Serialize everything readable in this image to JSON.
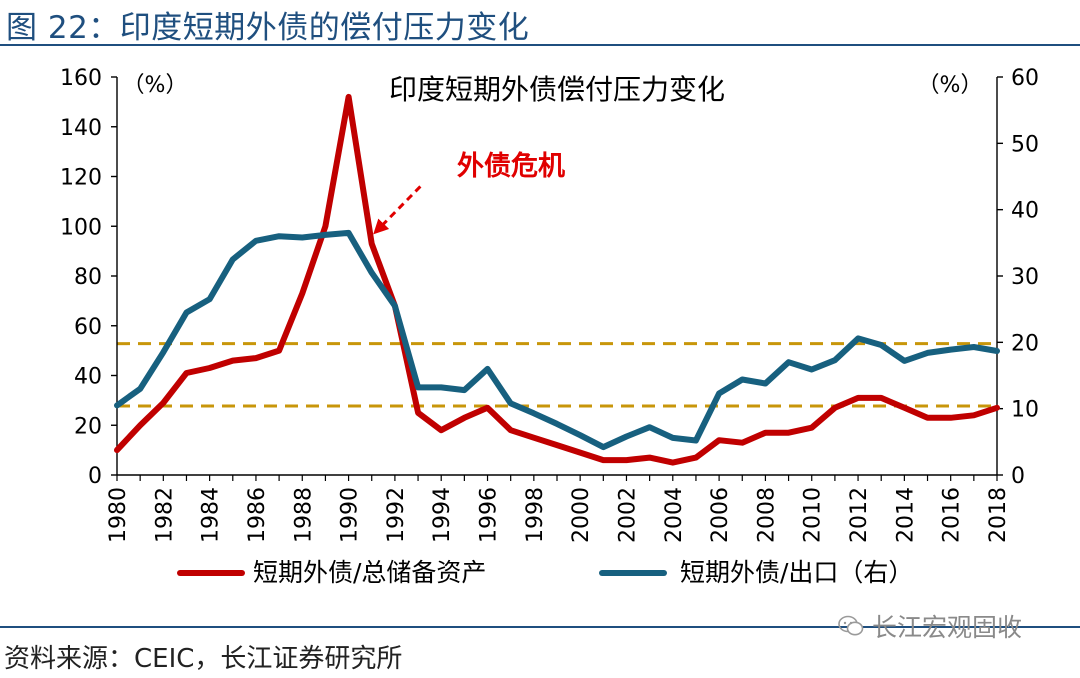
{
  "figure": {
    "title": "图 22：印度短期外债的偿付压力变化",
    "source": "资料来源：CEIC，长江证券研究所",
    "watermark": "长江宏观固收"
  },
  "chart_data": {
    "type": "line",
    "title": "印度短期外债偿付压力变化",
    "x": [
      1980,
      1981,
      1982,
      1983,
      1984,
      1985,
      1986,
      1987,
      1988,
      1989,
      1990,
      1991,
      1992,
      1993,
      1994,
      1995,
      1996,
      1997,
      1998,
      1999,
      2000,
      2001,
      2002,
      2003,
      2004,
      2005,
      2006,
      2007,
      2008,
      2009,
      2010,
      2011,
      2012,
      2013,
      2014,
      2015,
      2016,
      2017,
      2018
    ],
    "x_ticks": [
      1980,
      1982,
      1984,
      1986,
      1988,
      1990,
      1992,
      1994,
      1996,
      1998,
      2000,
      2002,
      2004,
      2006,
      2008,
      2010,
      2012,
      2014,
      2016,
      2018
    ],
    "xlim": [
      1980,
      2018
    ],
    "ylim_left": [
      0,
      160
    ],
    "yticks_left": [
      0,
      20,
      40,
      60,
      80,
      100,
      120,
      140,
      160
    ],
    "left_unit": "（%）",
    "ylim_right": [
      0,
      60
    ],
    "yticks_right": [
      0,
      10,
      20,
      30,
      40,
      50,
      60
    ],
    "right_unit": "（%）",
    "series": [
      {
        "name": "短期外债/总储备资产",
        "axis": "left",
        "color": "#c00000",
        "values": [
          10,
          20,
          29,
          41,
          43,
          46,
          47,
          50,
          73,
          100,
          152,
          93,
          68,
          25,
          18,
          23,
          27,
          18,
          15,
          12,
          9,
          6,
          6,
          7,
          5,
          7,
          14,
          13,
          17,
          17,
          19,
          27,
          31,
          31,
          27,
          23,
          23,
          24,
          27
        ]
      },
      {
        "name": "短期外债/出口（右）",
        "axis": "right",
        "color": "#17607f",
        "values": [
          10.5,
          13,
          18.5,
          24.5,
          26.5,
          32.5,
          35.3,
          36,
          35.8,
          36.2,
          36.5,
          30.5,
          25.5,
          13.2,
          13.2,
          12.8,
          16,
          10.8,
          9.3,
          7.7,
          6,
          4.2,
          5.8,
          7.2,
          5.6,
          5.2,
          12.3,
          14.4,
          13.8,
          17,
          15.9,
          17.3,
          20.6,
          19.6,
          17.2,
          18.4,
          18.9,
          19.3,
          18.7
        ]
      }
    ],
    "reference_lines": [
      {
        "axis": "right",
        "value": 10.4,
        "color": "#c8960a"
      },
      {
        "axis": "right",
        "value": 19.8,
        "color": "#c8960a"
      }
    ],
    "annotation": {
      "text": "外债危机",
      "color": "#e00000",
      "from": {
        "x": 1993.1,
        "y_left": 116
      },
      "to": {
        "x": 1991.2,
        "y_left": 98
      }
    },
    "legend": "bottom",
    "grid": false
  },
  "colors": {
    "title_blue": "#1f4f7f",
    "red_series": "#c00000",
    "blue_series": "#17607f",
    "reference": "#c8960a",
    "annotation": "#e00000"
  }
}
